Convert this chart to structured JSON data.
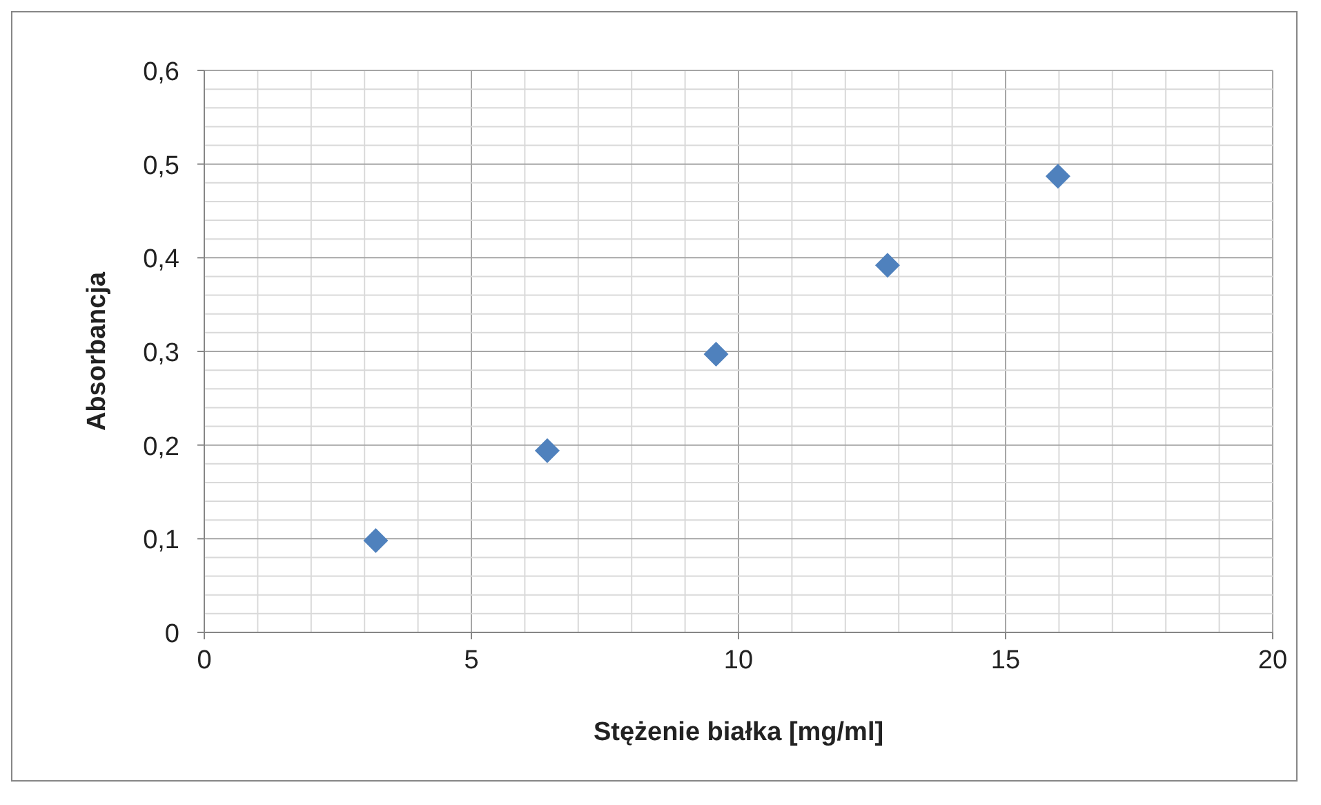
{
  "chart_data": {
    "type": "scatter",
    "xlabel": "Stężenie białka [mg/ml]",
    "ylabel": "Absorbancja",
    "x": [
      3.21,
      6.42,
      9.58,
      12.79,
      15.98
    ],
    "series": [
      {
        "color": "#4f81bd",
        "values": [
          0.098,
          0.194,
          0.297,
          0.392,
          0.487
        ]
      }
    ],
    "xlim": [
      0,
      20
    ],
    "xticks": [
      0,
      {
        "value": 1,
        "label": null
      },
      {
        "value": 2,
        "label": null
      },
      {
        "value": 3,
        "label": null
      },
      {
        "value": 4,
        "label": null
      },
      5,
      {
        "value": 6,
        "label": null
      },
      {
        "value": 7,
        "label": null
      },
      {
        "value": 8,
        "label": null
      },
      {
        "value": 9,
        "label": null
      },
      10,
      {
        "value": 11,
        "label": null
      },
      {
        "value": 12,
        "label": null
      },
      {
        "value": 13,
        "label": null
      },
      {
        "value": 14,
        "label": null
      },
      15,
      {
        "value": 16,
        "label": null
      },
      {
        "value": 17,
        "label": null
      },
      {
        "value": 18,
        "label": null
      },
      {
        "value": 19,
        "label": null
      },
      20
    ],
    "ylim": [
      0,
      0.6
    ],
    "yticks": [
      0,
      {
        "value": 0.02,
        "label": null
      },
      {
        "value": 0.04,
        "label": null
      },
      {
        "value": 0.06,
        "label": null
      },
      {
        "value": 0.08,
        "label": null
      },
      {
        "value": 0.1,
        "label": "0,1"
      },
      {
        "value": 0.12,
        "label": null
      },
      {
        "value": 0.14,
        "label": null
      },
      {
        "value": 0.16,
        "label": null
      },
      {
        "value": 0.18,
        "label": null
      },
      {
        "value": 0.2,
        "label": "0,2"
      },
      {
        "value": 0.22,
        "label": null
      },
      {
        "value": 0.24,
        "label": null
      },
      {
        "value": 0.26,
        "label": null
      },
      {
        "value": 0.28,
        "label": null
      },
      {
        "value": 0.3,
        "label": "0,3"
      },
      {
        "value": 0.32,
        "label": null
      },
      {
        "value": 0.34,
        "label": null
      },
      {
        "value": 0.36,
        "label": null
      },
      {
        "value": 0.38,
        "label": null
      },
      {
        "value": 0.4,
        "label": "0,4"
      },
      {
        "value": 0.42,
        "label": null
      },
      {
        "value": 0.44,
        "label": null
      },
      {
        "value": 0.46,
        "label": null
      },
      {
        "value": 0.48,
        "label": null
      },
      {
        "value": 0.5,
        "label": "0,5"
      },
      {
        "value": 0.52,
        "label": null
      },
      {
        "value": 0.54,
        "label": null
      },
      {
        "value": 0.56,
        "label": null
      },
      {
        "value": 0.58,
        "label": null
      },
      {
        "value": 0.6,
        "label": "0,6"
      }
    ],
    "grid": true,
    "marker": "diamond"
  }
}
